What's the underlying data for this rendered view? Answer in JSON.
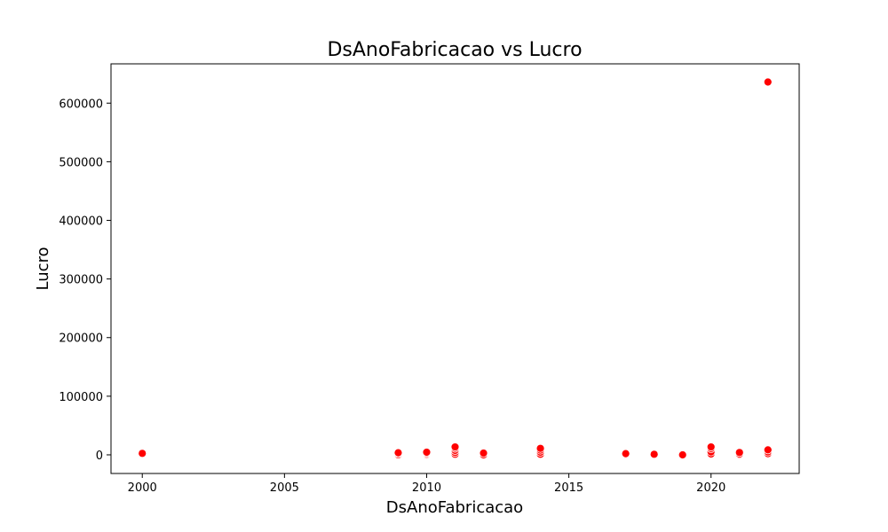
{
  "chart_data": {
    "type": "scatter",
    "title": "DsAnoFabricacao vs Lucro",
    "xlabel": "DsAnoFabricacao",
    "ylabel": "Lucro",
    "xlim": [
      1998.9,
      2023.1
    ],
    "ylim": [
      -31800,
      667000
    ],
    "xticks": [
      2000,
      2005,
      2010,
      2015,
      2020
    ],
    "yticks": [
      0,
      100000,
      200000,
      300000,
      400000,
      500000,
      600000
    ],
    "point_color": "#ff0000",
    "grid": false,
    "series": [
      {
        "x": [
          2000,
          2000,
          2009,
          2009,
          2009,
          2010,
          2010,
          2010,
          2010,
          2011,
          2011,
          2011,
          2011,
          2011,
          2012,
          2012,
          2014,
          2014,
          2014,
          2014,
          2017,
          2017,
          2018,
          2018,
          2019,
          2020,
          2020,
          2020,
          2020,
          2021,
          2021,
          2021,
          2022,
          2022,
          2022,
          2022
        ],
        "y": [
          1500,
          2500,
          0,
          2000,
          3500,
          0,
          1500,
          3000,
          4500,
          1000,
          4000,
          7500,
          11000,
          13500,
          0,
          3000,
          1000,
          4500,
          8000,
          11000,
          1000,
          2000,
          0,
          1000,
          0,
          1500,
          5000,
          10500,
          13500,
          0,
          1500,
          4000,
          2000,
          5000,
          8500,
          636000
        ]
      }
    ]
  }
}
